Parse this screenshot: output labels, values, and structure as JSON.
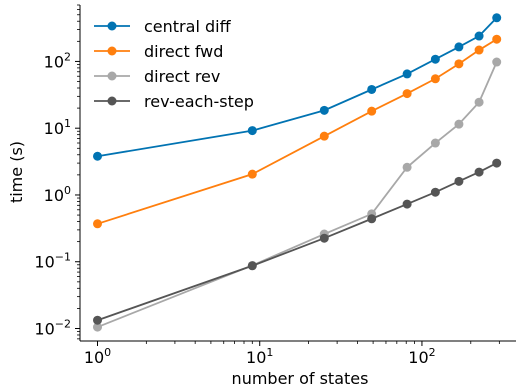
{
  "chart_data": {
    "type": "line",
    "xlabel": "number of states",
    "ylabel": "time (s)",
    "xscale": "log",
    "yscale": "log",
    "xlim": [
      0.78,
      380
    ],
    "ylim": [
      0.0065,
      700
    ],
    "xticks": [
      {
        "value": 1,
        "base": "10",
        "exp": "0"
      },
      {
        "value": 10,
        "base": "10",
        "exp": "1"
      },
      {
        "value": 100,
        "base": "10",
        "exp": "2"
      }
    ],
    "yticks": [
      {
        "value": 0.01,
        "base": "10",
        "exp": "−2"
      },
      {
        "value": 0.1,
        "base": "10",
        "exp": "−1"
      },
      {
        "value": 1,
        "base": "10",
        "exp": "0"
      },
      {
        "value": 10,
        "base": "10",
        "exp": "1"
      },
      {
        "value": 100,
        "base": "10",
        "exp": "2"
      }
    ],
    "legend_position": "top-left",
    "grid": false,
    "x": [
      1,
      9,
      25,
      49,
      81,
      121,
      169,
      225,
      289
    ],
    "series": [
      {
        "name": "central diff",
        "color": "#0173b2",
        "values": [
          3.8,
          9.2,
          18.5,
          38,
          65,
          108,
          165,
          240,
          450
        ]
      },
      {
        "name": "direct fwd",
        "color": "#ff7f0e",
        "values": [
          0.37,
          2.05,
          7.6,
          18,
          33,
          55,
          92,
          148,
          215
        ]
      },
      {
        "name": "direct rev",
        "color": "#a8a8a8",
        "values": [
          0.0105,
          0.088,
          0.26,
          0.52,
          2.6,
          6.0,
          11.5,
          24.5,
          98
        ]
      },
      {
        "name": "rev-each-step",
        "color": "#555555",
        "values": [
          0.0133,
          0.087,
          0.225,
          0.44,
          0.73,
          1.1,
          1.6,
          2.2,
          3.0
        ]
      }
    ]
  }
}
